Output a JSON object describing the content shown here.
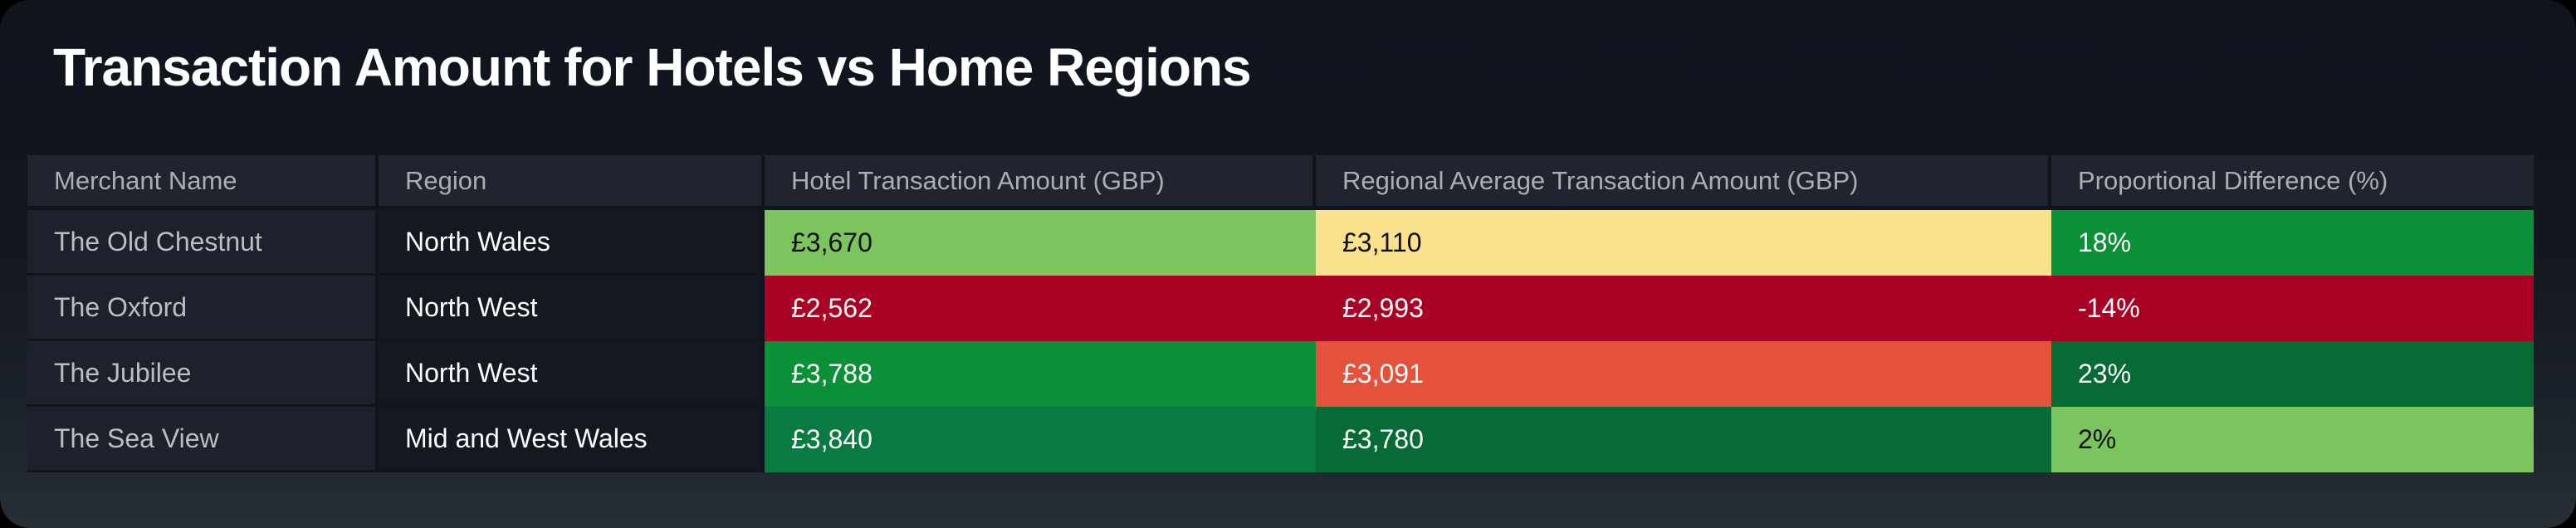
{
  "panel": {
    "title": "Transaction Amount for Hotels vs Home Regions"
  },
  "table": {
    "columns": [
      {
        "label": "Merchant Name"
      },
      {
        "label": "Region"
      },
      {
        "label": "Hotel Transaction Amount (GBP)"
      },
      {
        "label": "Regional Average Transaction Amount (GBP)"
      },
      {
        "label": "Proportional Difference (%)"
      }
    ],
    "rows": [
      {
        "merchant": "The Old Chestnut",
        "region": "North Wales",
        "hotel": {
          "text": "£3,670",
          "bg": "#7CC45E",
          "fg": "#101010"
        },
        "regional": {
          "text": "£3,110",
          "bg": "#FAE28C",
          "fg": "#101010"
        },
        "diff": {
          "text": "18%",
          "bg": "#0A9137",
          "fg": "#FFFFFF"
        }
      },
      {
        "merchant": "The Oxford",
        "region": "North West",
        "hotel": {
          "text": "£2,562",
          "bg": "#A80225",
          "fg": "#FFFFFF"
        },
        "regional": {
          "text": "£2,993",
          "bg": "#A80225",
          "fg": "#FFFFFF"
        },
        "diff": {
          "text": "-14%",
          "bg": "#A80225",
          "fg": "#FFFFFF"
        }
      },
      {
        "merchant": "The Jubilee",
        "region": "North West",
        "hotel": {
          "text": "£3,788",
          "bg": "#0A9137",
          "fg": "#FFFFFF"
        },
        "regional": {
          "text": "£3,091",
          "bg": "#E5523B",
          "fg": "#FFFFFF"
        },
        "diff": {
          "text": "23%",
          "bg": "#066B35",
          "fg": "#FFFFFF"
        }
      },
      {
        "merchant": "The Sea View",
        "region": "Mid and West Wales",
        "hotel": {
          "text": "£3,840",
          "bg": "#087B40",
          "fg": "#FFFFFF"
        },
        "regional": {
          "text": "£3,780",
          "bg": "#066B35",
          "fg": "#FFFFFF"
        },
        "diff": {
          "text": "2%",
          "bg": "#7CC45E",
          "fg": "#101010"
        }
      }
    ]
  },
  "chart_data": {
    "type": "table",
    "title": "Transaction Amount for Hotels vs Home Regions",
    "columns": [
      "Merchant Name",
      "Region",
      "Hotel Transaction Amount (GBP)",
      "Regional Average Transaction Amount (GBP)",
      "Proportional Difference (%)"
    ],
    "rows": [
      [
        "The Old Chestnut",
        "North Wales",
        3670,
        3110,
        18
      ],
      [
        "The Oxford",
        "North West",
        2562,
        2993,
        -14
      ],
      [
        "The Jubilee",
        "North West",
        3788,
        3091,
        23
      ],
      [
        "The Sea View",
        "Mid and West Wales",
        3840,
        3780,
        2
      ]
    ],
    "cell_color_encoding": "heatmap background: dark red #A80225 (low/negative) → orange #E5523B → pale yellow #FAE28C → light green #7CC45E → medium green #0A9137 → dark green #066B35 (high)",
    "layout": "dark dashboard panel, table with colored value cells, header row gray"
  }
}
